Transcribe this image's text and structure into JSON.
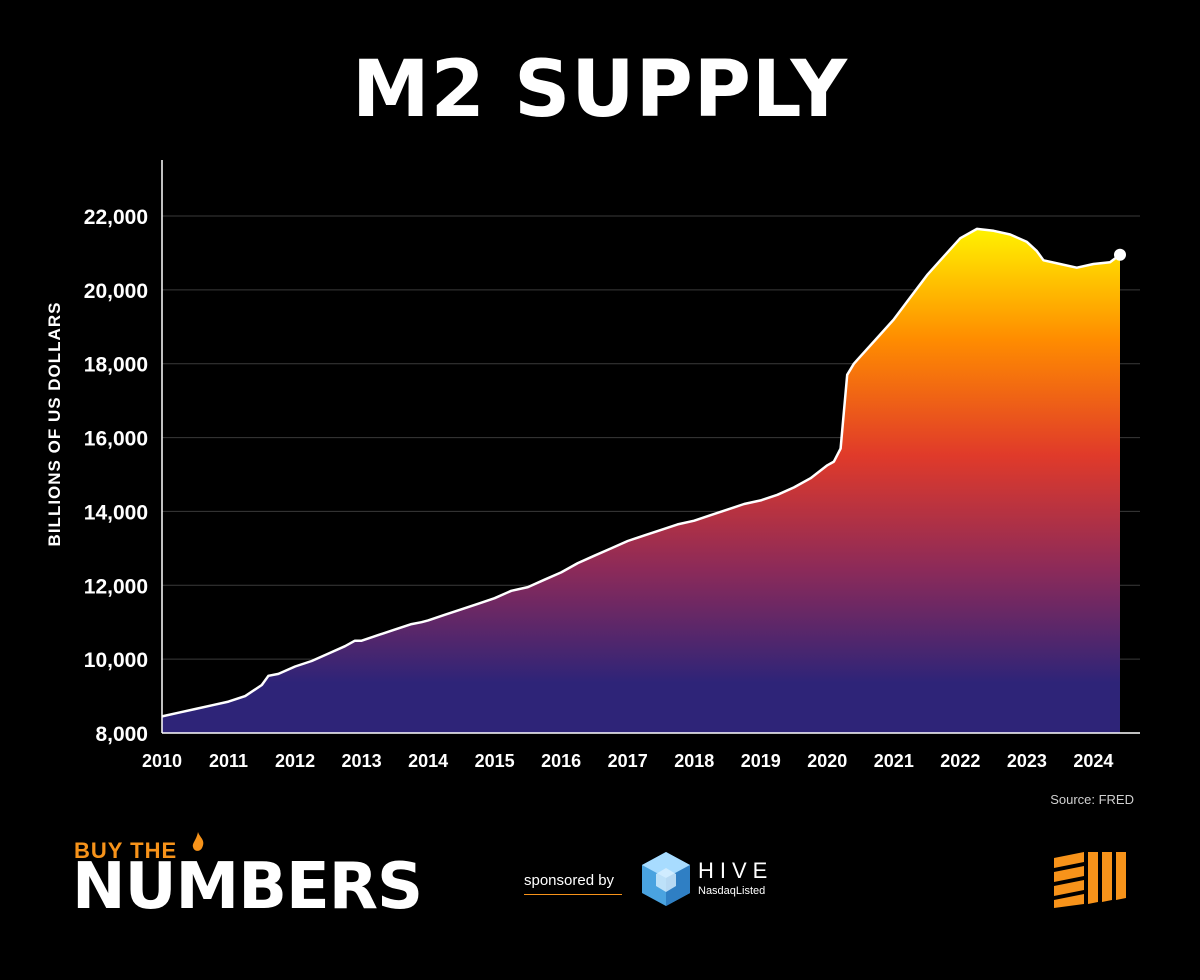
{
  "header": {
    "title": "M2 SUPPLY"
  },
  "source": "Source: FRED",
  "branding": {
    "small": "BUY THE",
    "big": "NUMBERS",
    "sponsored_by": "sponsored by",
    "sponsor_name": "HIVE",
    "sponsor_sub": "NasdaqListed",
    "icons": [
      "flame-icon",
      "hive-cube-icon",
      "corner-stripes-logo"
    ]
  },
  "colors": {
    "background": "#000000",
    "gradient_top": "#fff200",
    "gradient_mid1": "#ff8c00",
    "gradient_mid2": "#e03a2a",
    "gradient_mid3": "#8a2a5a",
    "gradient_bottom": "#2e2478",
    "accent": "#f7931a"
  },
  "chart_data": {
    "type": "area",
    "title": "M2 SUPPLY",
    "xlabel": "",
    "ylabel": "BILLIONS OF US DOLLARS",
    "xlim": [
      2010,
      2024.8
    ],
    "ylim": [
      8000,
      23500
    ],
    "yticks": [
      8000,
      10000,
      12000,
      14000,
      16000,
      18000,
      20000,
      22000
    ],
    "ytick_labels": [
      "8,000",
      "10,000",
      "12,000",
      "14,000",
      "16,000",
      "18,000",
      "20,000",
      "22,000"
    ],
    "xticks": [
      2010,
      2011,
      2012,
      2013,
      2014,
      2015,
      2016,
      2017,
      2018,
      2019,
      2020,
      2021,
      2022,
      2023,
      2024
    ],
    "xtick_labels": [
      "2010",
      "2011",
      "2012",
      "2013",
      "2014",
      "2015",
      "2016",
      "2017",
      "2018",
      "2019",
      "2020",
      "2021",
      "2022",
      "2023",
      "2024"
    ],
    "grid": "horizontal",
    "end_marker": true,
    "series": [
      {
        "x": [
          2010.0,
          2010.25,
          2010.5,
          2010.75,
          2011.0,
          2011.25,
          2011.5,
          2011.6,
          2011.75,
          2012.0,
          2012.25,
          2012.5,
          2012.75,
          2012.9,
          2013.0,
          2013.25,
          2013.5,
          2013.75,
          2013.9,
          2014.0,
          2014.25,
          2014.5,
          2014.75,
          2015.0,
          2015.25,
          2015.5,
          2015.75,
          2016.0,
          2016.25,
          2016.5,
          2016.75,
          2017.0,
          2017.25,
          2017.5,
          2017.75,
          2018.0,
          2018.25,
          2018.5,
          2018.75,
          2019.0,
          2019.25,
          2019.5,
          2019.75,
          2020.0,
          2020.1,
          2020.2,
          2020.3,
          2020.4,
          2020.5,
          2020.75,
          2021.0,
          2021.25,
          2021.5,
          2021.75,
          2022.0,
          2022.25,
          2022.5,
          2022.75,
          2023.0,
          2023.15,
          2023.25,
          2023.5,
          2023.75,
          2024.0,
          2024.25,
          2024.4
        ],
        "values": [
          8450,
          8550,
          8650,
          8750,
          8850,
          9000,
          9300,
          9550,
          9600,
          9800,
          9950,
          10150,
          10350,
          10500,
          10500,
          10650,
          10800,
          10950,
          11000,
          11050,
          11200,
          11350,
          11500,
          11650,
          11850,
          11950,
          12150,
          12350,
          12600,
          12800,
          13000,
          13200,
          13350,
          13500,
          13650,
          13750,
          13900,
          14050,
          14200,
          14300,
          14450,
          14650,
          14900,
          15250,
          15350,
          15700,
          17700,
          18000,
          18200,
          18700,
          19200,
          19800,
          20400,
          20900,
          21400,
          21650,
          21600,
          21500,
          21300,
          21050,
          20800,
          20700,
          20600,
          20700,
          20750,
          20950
        ]
      }
    ]
  }
}
